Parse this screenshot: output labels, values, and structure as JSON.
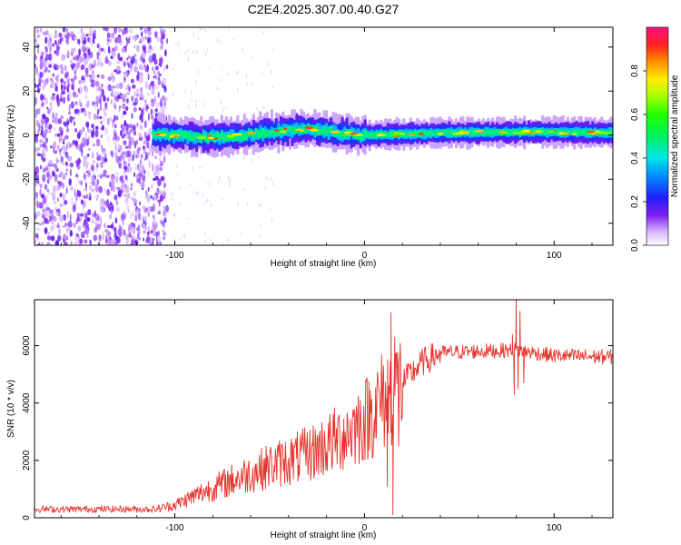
{
  "title": "C2E4.2025.307.00.40.G27",
  "chart_data": [
    {
      "type": "heatmap",
      "title": "C2E4.2025.307.00.40.G27",
      "xlabel": "Height of straight line (km)",
      "ylabel": "Frequency (Hz)",
      "xlim": [
        -174,
        131
      ],
      "ylim": [
        -50,
        49
      ],
      "xticks": [
        -100,
        0,
        100
      ],
      "yticks": [
        -40,
        -20,
        0,
        20,
        40
      ],
      "colorbar": {
        "label": "Normalized spectral amplitude",
        "range": [
          0.0,
          1.0
        ],
        "ticks": [
          0.0,
          0.2,
          0.4,
          0.6,
          0.8
        ]
      },
      "noise_region_x": [
        -174,
        -108
      ],
      "signal_band": {
        "center_hz": 0,
        "start_km": -112,
        "points": [
          {
            "x": -112,
            "f": 0.5
          },
          {
            "x": -95,
            "f": -0.5
          },
          {
            "x": -75,
            "f": -1
          },
          {
            "x": -60,
            "f": 0.5
          },
          {
            "x": -45,
            "f": 2
          },
          {
            "x": -30,
            "f": 3
          },
          {
            "x": -15,
            "f": 1
          },
          {
            "x": 0,
            "f": 0
          },
          {
            "x": 40,
            "f": 1
          },
          {
            "x": 90,
            "f": 1.5
          },
          {
            "x": 131,
            "f": 1
          }
        ]
      }
    },
    {
      "type": "line",
      "xlabel": "Height of straight line (km)",
      "ylabel": "SNR (10 * v/v)",
      "xlim": [
        -174,
        131
      ],
      "ylim": [
        0,
        7600
      ],
      "xticks": [
        -100,
        0,
        100
      ],
      "yticks": [
        0,
        2000,
        4000,
        6000
      ],
      "series": [
        {
          "name": "SNR",
          "color": "#e8312b",
          "envelope": [
            {
              "x": -174,
              "y": 300
            },
            {
              "x": -110,
              "y": 300
            },
            {
              "x": -100,
              "y": 450
            },
            {
              "x": -85,
              "y": 900
            },
            {
              "x": -70,
              "y": 1300
            },
            {
              "x": -50,
              "y": 1800
            },
            {
              "x": -30,
              "y": 2200
            },
            {
              "x": -15,
              "y": 2700
            },
            {
              "x": 0,
              "y": 3400
            },
            {
              "x": 10,
              "y": 4100
            },
            {
              "x": 20,
              "y": 4700
            },
            {
              "x": 30,
              "y": 5400
            },
            {
              "x": 40,
              "y": 5750
            },
            {
              "x": 60,
              "y": 5800
            },
            {
              "x": 80,
              "y": 5850
            },
            {
              "x": 100,
              "y": 5650
            },
            {
              "x": 131,
              "y": 5600
            }
          ],
          "spikes": [
            {
              "x": 10,
              "y": 5300
            },
            {
              "x": 12,
              "y": 1100
            },
            {
              "x": 14,
              "y": 7150
            },
            {
              "x": 15,
              "y": 100
            },
            {
              "x": 16,
              "y": 6300
            },
            {
              "x": 18,
              "y": 2500
            },
            {
              "x": 78,
              "y": 6400
            },
            {
              "x": 79,
              "y": 4300
            },
            {
              "x": 80,
              "y": 7600
            },
            {
              "x": 81,
              "y": 4500
            },
            {
              "x": 82,
              "y": 7200
            },
            {
              "x": 84,
              "y": 4700
            }
          ]
        }
      ]
    }
  ]
}
